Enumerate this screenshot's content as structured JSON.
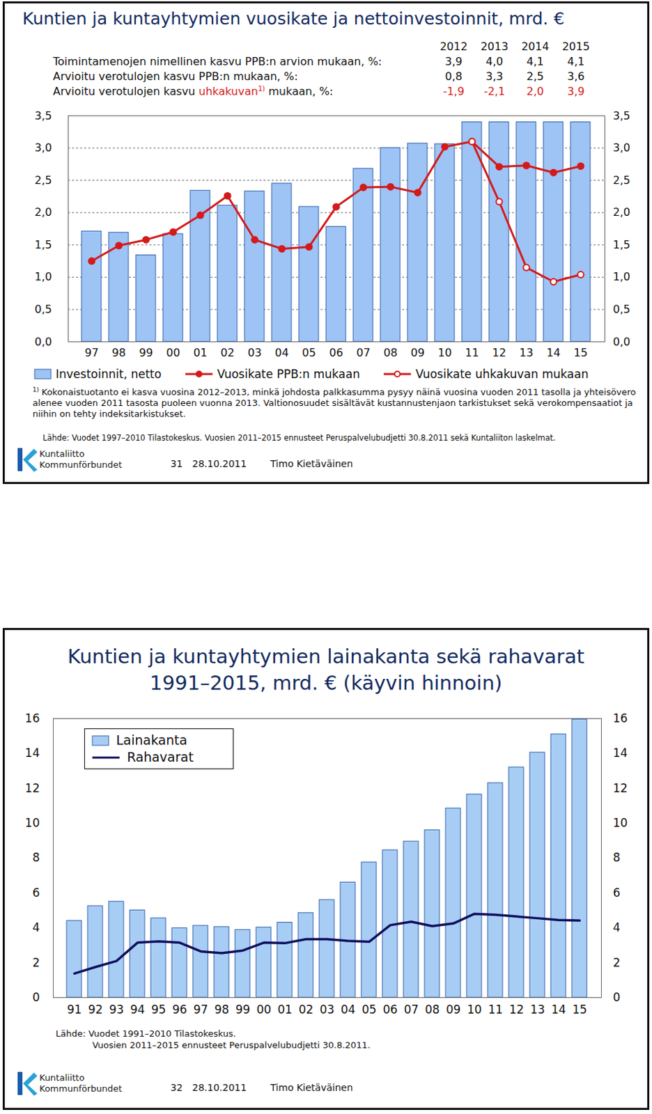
{
  "chart_data": [
    {
      "type": "bar",
      "title": "Kuntien ja kuntayhtymien vuosikate ja nettoinvestoinnit, mrd. €",
      "table": {
        "columns": [
          "2012",
          "2013",
          "2014",
          "2015"
        ],
        "rows": [
          {
            "label": "Toimintamenojen nimellinen kasvu PPB:n arvion mukaan, %:",
            "values": [
              "3,9",
              "4,0",
              "4,1",
              "4,1"
            ]
          },
          {
            "label": "Arvioitu verotulojen kasvu PPB:n mukaan, %:",
            "values": [
              "0,8",
              "3,3",
              "2,5",
              "3,6"
            ]
          },
          {
            "label": [
              "Arvioitu verotulojen kasvu ",
              "uhkakuvan",
              "1)",
              " mukaan, %:"
            ],
            "values": [
              "-1,9",
              "-2,1",
              "2,0",
              "3,9"
            ],
            "color": "#d41a1a"
          }
        ]
      },
      "categories": [
        "97",
        "98",
        "99",
        "00",
        "01",
        "02",
        "03",
        "04",
        "05",
        "06",
        "07",
        "08",
        "09",
        "10",
        "11",
        "12",
        "13",
        "14",
        "15"
      ],
      "series": [
        {
          "name": "Investoinnit, netto",
          "type": "bar",
          "color": "#9ec3f5",
          "values": [
            1.71,
            1.69,
            1.34,
            1.67,
            2.34,
            2.11,
            2.33,
            2.45,
            2.09,
            1.78,
            2.68,
            3.0,
            3.07,
            3.06,
            3.4,
            3.4,
            3.4,
            3.4,
            3.4
          ]
        },
        {
          "name": "Vuosikate PPB:n mukaan",
          "type": "line",
          "color": "#d41a1a",
          "marker": "circle",
          "values": [
            1.25,
            1.49,
            1.58,
            1.7,
            1.96,
            2.26,
            1.58,
            1.44,
            1.47,
            2.09,
            2.39,
            2.4,
            2.31,
            3.02,
            3.1,
            2.71,
            2.73,
            2.62,
            2.72
          ]
        },
        {
          "name": "Vuosikate uhkakuvan mukaan",
          "type": "line",
          "color": "#d41a1a",
          "marker": "hollow_circle",
          "values": [
            null,
            null,
            null,
            null,
            null,
            null,
            null,
            null,
            null,
            null,
            null,
            null,
            null,
            null,
            3.1,
            2.17,
            1.15,
            0.93,
            1.04
          ]
        }
      ],
      "ylim": [
        0,
        3.5
      ],
      "yticks": [
        {
          "value": 0,
          "label": "0,0"
        },
        {
          "value": 0.5,
          "label": "0,5"
        },
        {
          "value": 1,
          "label": "1,0"
        },
        {
          "value": 1.5,
          "label": "1,5"
        },
        {
          "value": 2,
          "label": "2,0"
        },
        {
          "value": 2.5,
          "label": "2,5"
        },
        {
          "value": 3,
          "label": "3,0"
        },
        {
          "value": 3.5,
          "label": "3,5"
        }
      ],
      "grid": true,
      "legend": "bottom",
      "footnote": {
        "marker": "1)",
        "text": "Kokonaistuotanto ei kasva vuosina 2012–2013, minkä johdosta palkkasumma pysyy näinä vuosina vuoden 2011 tasolla ja yhteisövero alenee vuoden 2011 tasosta puoleen vuonna 2013. Valtionosuudet sisältävät kustannustenjaon tarkistukset sekä verokompensaatiot ja niihin on tehty indeksitarkistukset."
      },
      "source": [
        "Lähde: Vuodet 1997–2010 Tilastokeskus. Vuosien 2011–2015 ennusteet Peruspalvelubudjetti 30.8.2011 sekä Kuntaliiton laskelmat."
      ],
      "footer": {
        "logo": [
          "Kuntaliitto",
          "Kommunförbundet"
        ],
        "page": "31",
        "date": "28.10.2011",
        "author": "Timo Kietäväinen"
      }
    },
    {
      "type": "bar",
      "title": [
        "Kuntien ja kuntayhtymien lainakanta sekä rahavarat",
        "1991–2015, mrd. € (käyvin hinnoin)"
      ],
      "categories": [
        "91",
        "92",
        "93",
        "94",
        "95",
        "96",
        "97",
        "98",
        "99",
        "00",
        "01",
        "02",
        "03",
        "04",
        "05",
        "06",
        "07",
        "08",
        "09",
        "10",
        "11",
        "12",
        "13",
        "14",
        "15"
      ],
      "series": [
        {
          "name": "Lainakanta",
          "type": "bar",
          "color": "#a8cdf5",
          "values": [
            4.4,
            5.25,
            5.5,
            5.0,
            4.55,
            3.98,
            4.12,
            4.05,
            3.88,
            4.02,
            4.3,
            4.85,
            5.6,
            6.6,
            7.75,
            8.45,
            8.95,
            9.6,
            10.85,
            11.65,
            12.3,
            13.2,
            14.05,
            15.1,
            15.95
          ]
        },
        {
          "name": "Rahavarat",
          "type": "line",
          "color": "#10105e",
          "values": [
            1.38,
            1.75,
            2.1,
            3.15,
            3.22,
            3.15,
            2.65,
            2.55,
            2.7,
            3.15,
            3.12,
            3.35,
            3.35,
            3.25,
            3.2,
            4.15,
            4.35,
            4.1,
            4.25,
            4.8,
            4.75,
            4.65,
            4.55,
            4.45,
            4.42
          ]
        }
      ],
      "ylim": [
        0,
        16
      ],
      "yticks": [
        0,
        2,
        4,
        6,
        8,
        10,
        12,
        14,
        16
      ],
      "grid": false,
      "legend": "top-left",
      "source": [
        "Lähde: Vuodet 1991–2010 Tilastokeskus.",
        "Vuosien 2011–2015 ennusteet Peruspalvelubudjetti 30.8.2011."
      ],
      "footer": {
        "logo": [
          "Kuntaliitto",
          "Kommunförbundet"
        ],
        "page": "32",
        "date": "28.10.2011",
        "author": "Timo Kietäväinen"
      }
    }
  ]
}
